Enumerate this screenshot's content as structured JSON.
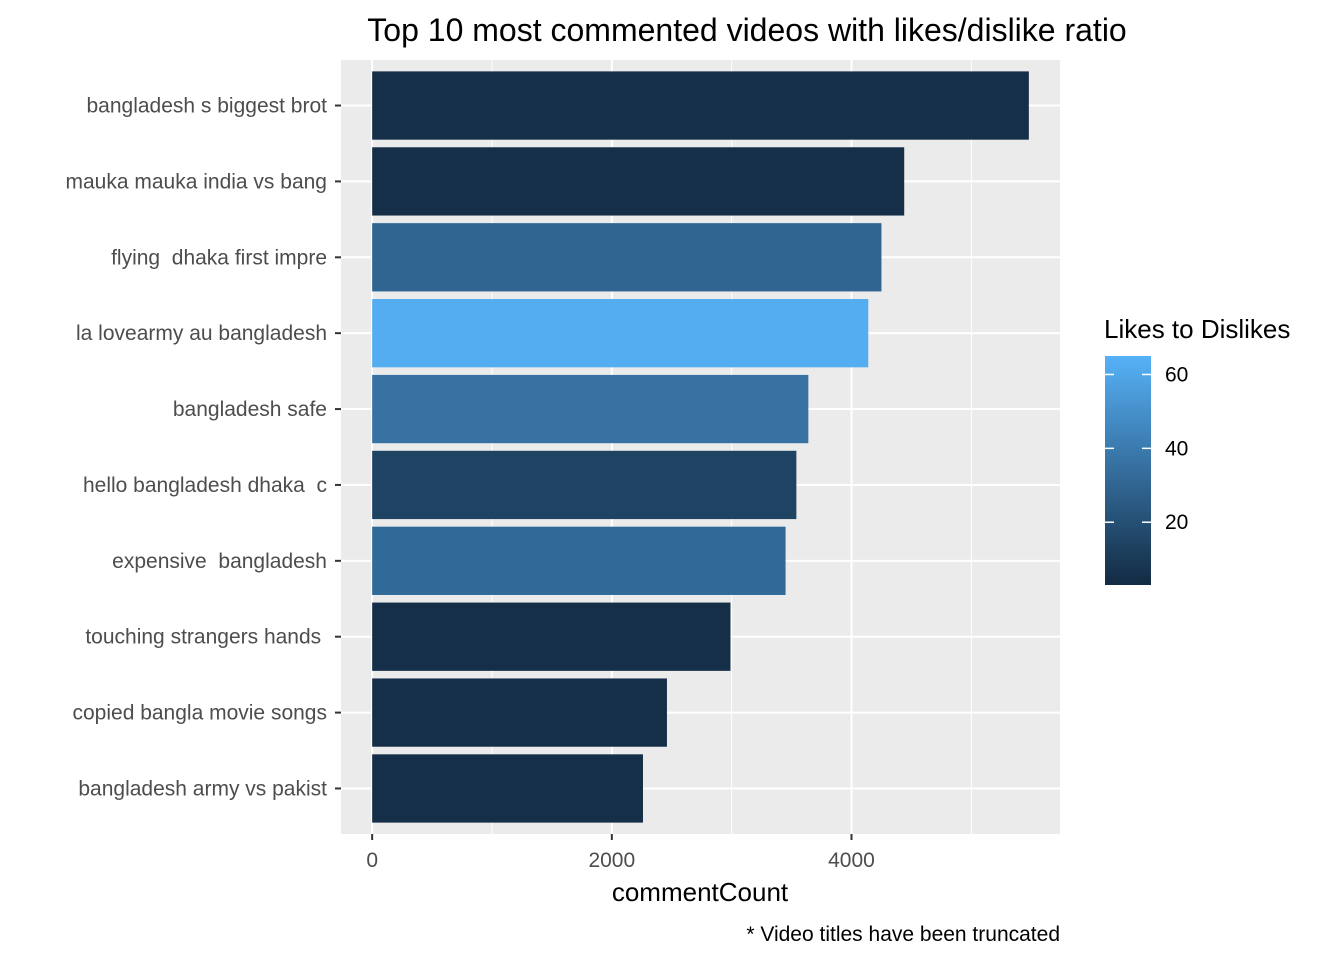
{
  "chart_data": {
    "type": "bar",
    "orientation": "horizontal",
    "title": "Top 10 most commented videos with likes/dislike ratio",
    "xlabel": "commentCount",
    "ylabel": "",
    "caption": "* Video titles have been truncated",
    "categories": [
      "bangladesh s biggest brot",
      "mauka mauka india vs bang",
      "flying  dhaka first impre",
      "la lovearmy au bangladesh",
      "bangladesh safe",
      "hello bangladesh dhaka  c",
      "expensive  bangladesh",
      "touching strangers hands ",
      "copied bangla movie songs",
      "bangladesh army vs pakist"
    ],
    "values": [
      5480,
      4440,
      4250,
      4140,
      3640,
      3540,
      3450,
      2990,
      2460,
      2260
    ],
    "fill_values": [
      5,
      5,
      30,
      63,
      36,
      14,
      32,
      5,
      5,
      5
    ],
    "xlim": [
      -260,
      5740
    ],
    "xticks": [
      0,
      2000,
      4000
    ],
    "xtick_labels": [
      "0",
      "2000",
      "4000"
    ],
    "x_minor_gridlines": [
      1000,
      3000,
      5000
    ],
    "grid": true,
    "legend": {
      "title": "Likes to Dislikes",
      "placement": "right",
      "ticks": [
        20,
        40,
        60
      ],
      "tick_labels": [
        "20",
        "40",
        "60"
      ],
      "range": [
        3,
        65
      ],
      "color_low": "#132B43",
      "color_high": "#56B1F7"
    },
    "colors": {
      "panel_background": "#ebebeb",
      "gridline": "#ffffff"
    }
  }
}
